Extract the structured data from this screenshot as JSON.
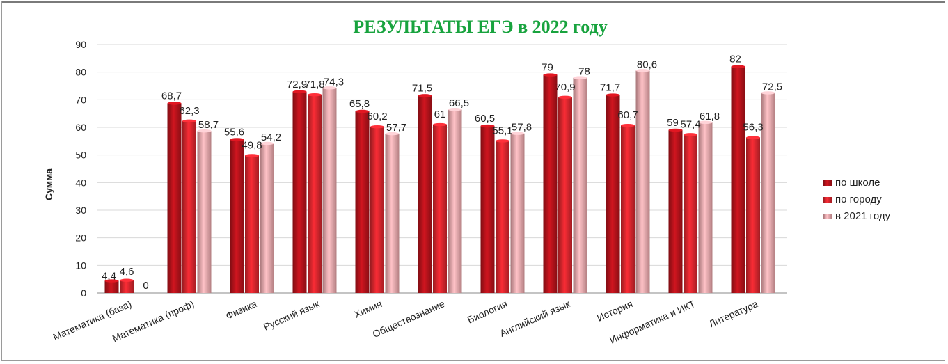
{
  "chart_data": {
    "type": "bar",
    "title": "РЕЗУЛЬТАТЫ  ЕГЭ в 2022 году",
    "ylabel": "Сумма",
    "xlabel": "",
    "ylim": [
      0,
      90
    ],
    "yticks": [
      "0",
      "10",
      "20",
      "30",
      "40",
      "50",
      "60",
      "70",
      "80",
      "90"
    ],
    "grid": true,
    "legend_position": "right",
    "categories": [
      "Математика (база)",
      "Математика (проф)",
      "Физика",
      "Русский язык",
      "Химия",
      "Обществознание",
      "Биология",
      "Английский язык",
      "История",
      "Информатика и ИКТ",
      "Литература"
    ],
    "series": [
      {
        "name": "по школе",
        "color": "#b5121b",
        "values": [
          4.4,
          68.7,
          55.6,
          72.9,
          65.8,
          71.5,
          60.5,
          79,
          71.7,
          59,
          82
        ],
        "labels": [
          "4,4",
          "68,7",
          "55,6",
          "72,9",
          "65,8",
          "71,5",
          "60,5",
          "79",
          "71,7",
          "59",
          "82"
        ]
      },
      {
        "name": "по городу",
        "color": "#d9262e",
        "values": [
          4.6,
          62.3,
          49.8,
          71.8,
          60.2,
          61,
          55.1,
          70.9,
          60.7,
          57.4,
          56.3
        ],
        "labels": [
          "4,6",
          "62,3",
          "49,8",
          "71,8",
          "60,2",
          "61",
          "55,1",
          "70,9",
          "60,7",
          "57,4",
          "56,3"
        ]
      },
      {
        "name": "в 2021 году",
        "color": "#eea9ad",
        "values": [
          0,
          58.7,
          54.2,
          74.3,
          57.7,
          66.5,
          57.8,
          78,
          80.6,
          61.8,
          72.5
        ],
        "labels": [
          "0",
          "58,7",
          "54,2",
          "74,3",
          "57,7",
          "66,5",
          "57,8",
          "78",
          "80,6",
          "61,8",
          "72,5"
        ]
      }
    ]
  }
}
